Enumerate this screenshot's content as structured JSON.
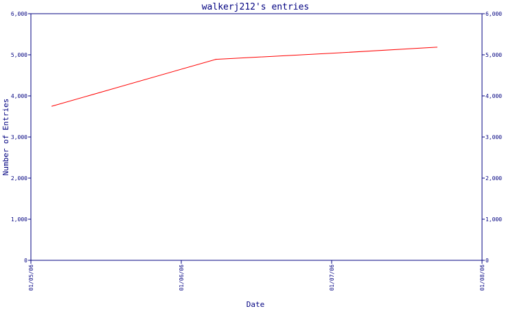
{
  "colors": {
    "axis": "#000080",
    "line": "#ff0000",
    "text": "#000080",
    "background": "#ffffff"
  },
  "chart_data": {
    "type": "line",
    "title": "walkerj212's entries",
    "xlabel": "Date",
    "ylabel": "Number of Entries",
    "x_ticks": [
      "01/05/06",
      "01/06/06",
      "01/07/06",
      "01/08/06"
    ],
    "xlim": [
      "01/05/06",
      "01/08/06"
    ],
    "y_ticks": [
      "0",
      "1,000",
      "2,000",
      "3,000",
      "4,000",
      "5,000",
      "6,000"
    ],
    "y_tick_values": [
      0,
      1000,
      2000,
      3000,
      4000,
      5000,
      6000
    ],
    "ylim": [
      0,
      6000
    ],
    "right_axis": true,
    "grid": false,
    "series": [
      {
        "points": [
          {
            "x": "01/05/06 +0.14",
            "xv": 0.14,
            "y": 3750
          },
          {
            "x": "01/06/06 +0.23",
            "xv": 1.23,
            "y": 4890
          },
          {
            "x": "01/07/06 +0.06",
            "xv": 2.06,
            "y": 5050
          },
          {
            "x": "01/07/06 +0.70",
            "xv": 2.7,
            "y": 5185
          }
        ]
      }
    ]
  }
}
